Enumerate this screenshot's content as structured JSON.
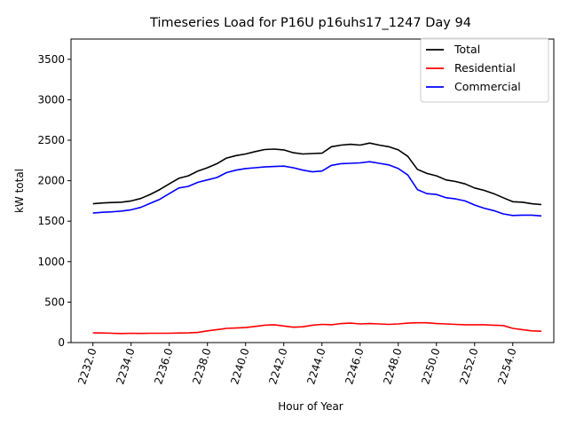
{
  "chart_data": {
    "type": "line",
    "title": "Timeseries Load for P16U p16uhs17_1247  Day 94",
    "xlabel": "Hour of Year",
    "ylabel": "kW total",
    "xlim": [
      2230.85,
      2256.15
    ],
    "ylim": [
      0,
      3750
    ],
    "xticks": [
      2232,
      2234,
      2236,
      2238,
      2240,
      2242,
      2244,
      2246,
      2248,
      2250,
      2252,
      2254
    ],
    "xtick_labels": [
      "2232.0",
      "2234.0",
      "2236.0",
      "2238.0",
      "2240.0",
      "2242.0",
      "2244.0",
      "2246.0",
      "2248.0",
      "2250.0",
      "2252.0",
      "2254.0"
    ],
    "yticks": [
      0,
      500,
      1000,
      1500,
      2000,
      2500,
      3000,
      3500
    ],
    "ytick_labels": [
      "0",
      "500",
      "1000",
      "1500",
      "2000",
      "2500",
      "3000",
      "3500"
    ],
    "legend_position": "top-right",
    "grid": false,
    "x": [
      2232.0,
      2232.5,
      2233.0,
      2233.5,
      2234.0,
      2234.5,
      2235.0,
      2235.5,
      2236.0,
      2236.5,
      2237.0,
      2237.5,
      2238.0,
      2238.5,
      2239.0,
      2239.5,
      2240.0,
      2240.5,
      2241.0,
      2241.5,
      2242.0,
      2242.5,
      2243.0,
      2243.5,
      2244.0,
      2244.5,
      2245.0,
      2245.5,
      2246.0,
      2246.5,
      2247.0,
      2247.5,
      2248.0,
      2248.5,
      2249.0,
      2249.5,
      2250.0,
      2250.5,
      2251.0,
      2251.5,
      2252.0,
      2252.5,
      2253.0,
      2253.5,
      2254.0,
      2254.5,
      2255.0,
      2255.5
    ],
    "series": [
      {
        "name": "Total",
        "color": "#000000",
        "values": [
          1715,
          1725,
          1730,
          1735,
          1750,
          1780,
          1830,
          1890,
          1960,
          2030,
          2060,
          2120,
          2160,
          2210,
          2280,
          2310,
          2330,
          2360,
          2385,
          2390,
          2380,
          2345,
          2330,
          2335,
          2340,
          2420,
          2440,
          2450,
          2440,
          2465,
          2440,
          2420,
          2380,
          2300,
          2140,
          2090,
          2060,
          2010,
          1990,
          1960,
          1910,
          1880,
          1840,
          1790,
          1740,
          1735,
          1715,
          1705
        ]
      },
      {
        "name": "Residential",
        "color": "#ff0000",
        "values": [
          120,
          118,
          115,
          112,
          115,
          113,
          115,
          115,
          115,
          118,
          120,
          125,
          145,
          160,
          175,
          180,
          185,
          200,
          215,
          220,
          205,
          190,
          195,
          215,
          225,
          220,
          235,
          240,
          230,
          235,
          230,
          225,
          230,
          240,
          245,
          245,
          235,
          230,
          225,
          220,
          220,
          220,
          215,
          210,
          175,
          160,
          145,
          140
        ]
      },
      {
        "name": "Commercial",
        "color": "#0000ff",
        "values": [
          1600,
          1610,
          1615,
          1625,
          1640,
          1670,
          1720,
          1770,
          1840,
          1910,
          1930,
          1980,
          2010,
          2040,
          2100,
          2130,
          2150,
          2160,
          2170,
          2175,
          2180,
          2160,
          2130,
          2110,
          2120,
          2190,
          2210,
          2215,
          2220,
          2235,
          2215,
          2195,
          2150,
          2070,
          1890,
          1840,
          1830,
          1790,
          1775,
          1750,
          1700,
          1660,
          1630,
          1590,
          1570,
          1575,
          1575,
          1565
        ]
      }
    ]
  }
}
